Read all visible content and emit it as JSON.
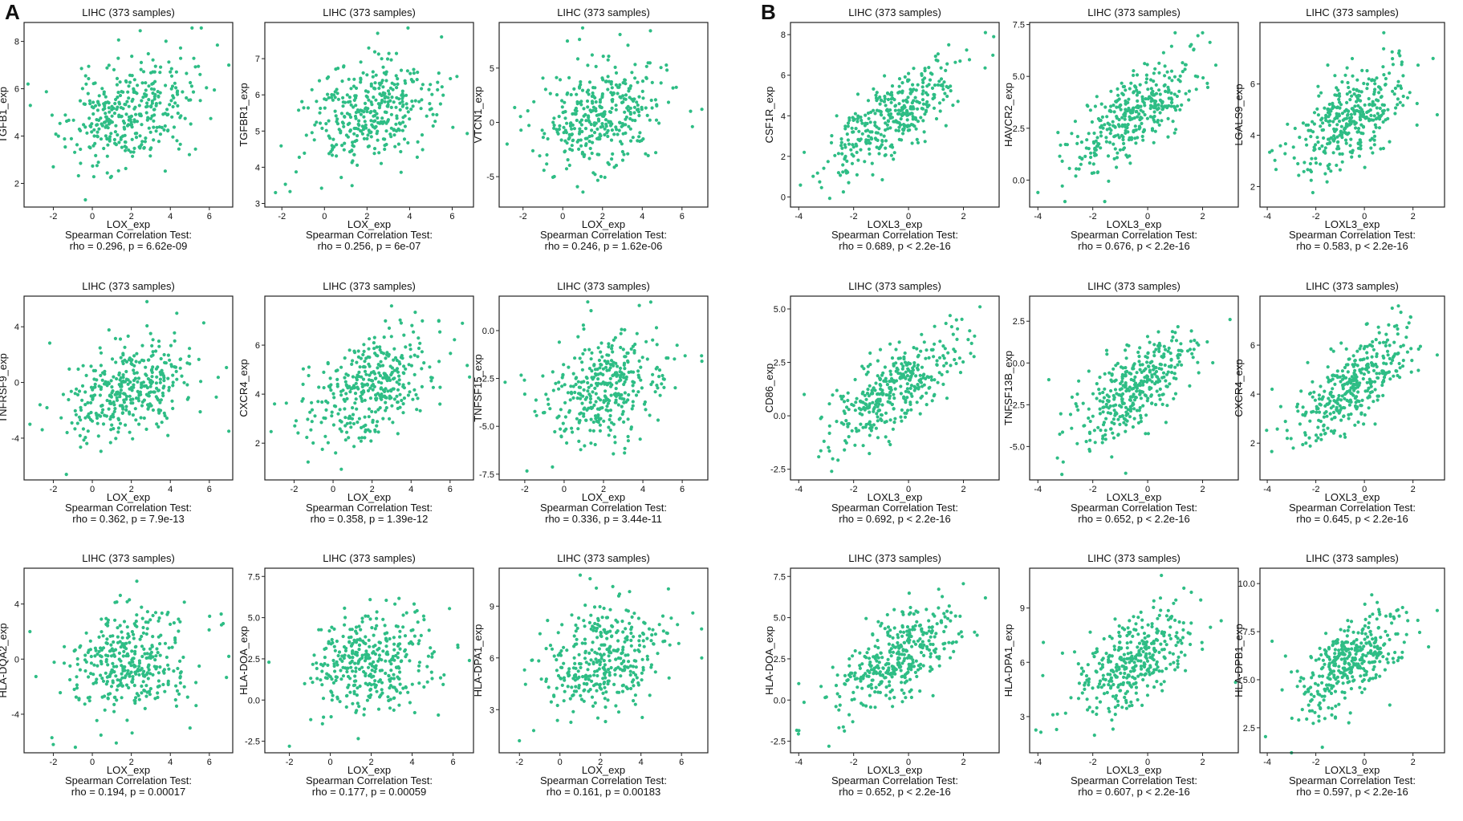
{
  "panels": {
    "A": {
      "label": "A"
    },
    "B": {
      "label": "B"
    }
  },
  "colors": {
    "point": "#2ebd85",
    "axis": "#222222"
  },
  "chart_data": [
    {
      "id": "A1",
      "panel": "A",
      "type": "scatter",
      "title": "LIHC (373 samples)",
      "xlabel": "LOX_exp",
      "ylabel": "TGFB1_exp",
      "xlim": [
        -3.5,
        7.2
      ],
      "ylim": [
        1.0,
        8.8
      ],
      "xticks": [
        -2,
        0,
        2,
        4,
        6
      ],
      "yticks": [
        2,
        4,
        6,
        8
      ],
      "test": "Spearman Correlation Test:",
      "stat": "rho = 0.296, p = 6.62e-09",
      "rho": 0.296,
      "n": 373,
      "seed": 11,
      "outliers": [
        [
          -3.3,
          6.2
        ],
        [
          7.0,
          7.0
        ],
        [
          -2.0,
          2.7
        ]
      ]
    },
    {
      "id": "A2",
      "panel": "A",
      "type": "scatter",
      "title": "LIHC (373 samples)",
      "xlabel": "LOX_exp",
      "ylabel": "TGFBR1_exp",
      "xlim": [
        -2.8,
        7.0
      ],
      "ylim": [
        2.9,
        8.0
      ],
      "xticks": [
        -2,
        0,
        2,
        4,
        6
      ],
      "yticks": [
        3,
        4,
        5,
        6,
        7
      ],
      "test": "Spearman Correlation Test:",
      "stat": "rho = 0.256, p = 6e-07",
      "rho": 0.256,
      "n": 373,
      "seed": 23,
      "outliers": [
        [
          2.5,
          7.7
        ],
        [
          5.5,
          7.6
        ],
        [
          -2.3,
          3.3
        ]
      ]
    },
    {
      "id": "A3",
      "panel": "A",
      "type": "scatter",
      "title": "LIHC (373 samples)",
      "xlabel": "LOX_exp",
      "ylabel": "VTCN1_exp",
      "xlim": [
        -3.2,
        7.3
      ],
      "ylim": [
        -7.8,
        9.2
      ],
      "xticks": [
        -2,
        0,
        2,
        4,
        6
      ],
      "yticks": [
        -5,
        0,
        5
      ],
      "test": "Spearman Correlation Test:",
      "stat": "rho = 0.246, p = 1.62e-06",
      "rho": 0.246,
      "n": 373,
      "seed": 37,
      "outliers": [
        [
          -2.8,
          -2.0
        ],
        [
          7.0,
          1.2
        ],
        [
          1.0,
          8.7
        ]
      ]
    },
    {
      "id": "A4",
      "panel": "A",
      "type": "scatter",
      "title": "LIHC (373 samples)",
      "xlabel": "LOX_exp",
      "ylabel": "TNFRSF9_exp",
      "xlim": [
        -3.5,
        7.2
      ],
      "ylim": [
        -7.0,
        6.2
      ],
      "xticks": [
        -2,
        0,
        2,
        4,
        6
      ],
      "yticks": [
        -4,
        0,
        4
      ],
      "test": "Spearman Correlation Test:",
      "stat": "rho = 0.362, p = 7.9e-13",
      "rho": 0.362,
      "n": 373,
      "seed": 41,
      "outliers": [
        [
          -3.2,
          -3.0
        ],
        [
          2.8,
          5.8
        ],
        [
          7.0,
          -3.5
        ]
      ]
    },
    {
      "id": "A5",
      "panel": "A",
      "type": "scatter",
      "title": "LIHC (373 samples)",
      "xlabel": "LOX_exp",
      "ylabel": "CXCR4_exp",
      "xlim": [
        -3.5,
        7.2
      ],
      "ylim": [
        0.5,
        8.0
      ],
      "xticks": [
        -2,
        0,
        2,
        4,
        6
      ],
      "yticks": [
        2,
        4,
        6
      ],
      "test": "Spearman Correlation Test:",
      "stat": "rho = 0.358, p = 1.39e-12",
      "rho": 0.358,
      "n": 373,
      "seed": 53,
      "outliers": [
        [
          -3.0,
          3.6
        ],
        [
          7.0,
          4.7
        ],
        [
          3.0,
          7.6
        ]
      ]
    },
    {
      "id": "A6",
      "panel": "A",
      "type": "scatter",
      "title": "LIHC (373 samples)",
      "xlabel": "LOX_exp",
      "ylabel": "TNFSF15_exp",
      "xlim": [
        -3.3,
        7.3
      ],
      "ylim": [
        -7.8,
        1.8
      ],
      "xticks": [
        -2,
        0,
        2,
        4,
        6
      ],
      "yticks": [
        -7.5,
        -5.0,
        -2.5,
        0.0
      ],
      "test": "Spearman Correlation Test:",
      "stat": "rho = 0.336, p = 3.44e-11",
      "rho": 0.336,
      "n": 373,
      "seed": 67,
      "outliers": [
        [
          -3.0,
          -2.7
        ],
        [
          7.0,
          -1.6
        ],
        [
          1.2,
          1.5
        ]
      ]
    },
    {
      "id": "A7",
      "panel": "A",
      "type": "scatter",
      "title": "LIHC (373 samples)",
      "xlabel": "LOX_exp",
      "ylabel": "HLA-DQA2_exp",
      "xlim": [
        -3.5,
        7.2
      ],
      "ylim": [
        -6.8,
        6.6
      ],
      "xticks": [
        -2,
        0,
        2,
        4,
        6
      ],
      "yticks": [
        -4,
        0,
        4
      ],
      "test": "Spearman Correlation Test:",
      "stat": "rho = 0.194, p = 0.00017",
      "rho": 0.194,
      "n": 373,
      "seed": 71,
      "outliers": [
        [
          -2.0,
          -6.2
        ],
        [
          -3.2,
          2.0
        ],
        [
          7.0,
          0.2
        ]
      ]
    },
    {
      "id": "A8",
      "panel": "A",
      "type": "scatter",
      "title": "LIHC (373 samples)",
      "xlabel": "LOX_exp",
      "ylabel": "HLA-DOA_exp",
      "xlim": [
        -3.2,
        7.0
      ],
      "ylim": [
        -3.2,
        8.0
      ],
      "xticks": [
        -2,
        0,
        2,
        4,
        6
      ],
      "yticks": [
        -2.5,
        0.0,
        2.5,
        5.0,
        7.5
      ],
      "test": "Spearman Correlation Test:",
      "stat": "rho = 0.177, p = 0.00059",
      "rho": 0.177,
      "n": 373,
      "seed": 83,
      "outliers": [
        [
          -2.0,
          -2.8
        ],
        [
          -3.0,
          2.3
        ],
        [
          6.8,
          2.4
        ]
      ]
    },
    {
      "id": "A9",
      "panel": "A",
      "type": "scatter",
      "title": "LIHC (373 samples)",
      "xlabel": "LOX_exp",
      "ylabel": "HLA-DPA1_exp",
      "xlim": [
        -3.0,
        7.3
      ],
      "ylim": [
        0.5,
        11.2
      ],
      "xticks": [
        -2,
        0,
        2,
        4,
        6
      ],
      "yticks": [
        3,
        6,
        9
      ],
      "test": "Spearman Correlation Test:",
      "stat": "rho = 0.161, p = 0.00183",
      "rho": 0.161,
      "n": 373,
      "seed": 97,
      "outliers": [
        [
          -2.0,
          1.2
        ],
        [
          1.0,
          10.8
        ],
        [
          7.0,
          6.0
        ]
      ]
    },
    {
      "id": "B1",
      "panel": "B",
      "type": "scatter",
      "title": "LIHC (373 samples)",
      "xlabel": "LOXL3_exp",
      "ylabel": "CSF1R_exp",
      "xlim": [
        -4.3,
        3.3
      ],
      "ylim": [
        -0.5,
        8.6
      ],
      "xticks": [
        -4,
        -2,
        0,
        2
      ],
      "yticks": [
        0,
        2,
        4,
        6,
        8
      ],
      "test": "Spearman Correlation Test:",
      "stat": "rho = 0.689, p < 2.2e-16",
      "rho": 0.689,
      "n": 373,
      "seed": 101,
      "outliers": [
        [
          -3.8,
          2.2
        ],
        [
          2.8,
          8.1
        ],
        [
          3.1,
          7.9
        ]
      ]
    },
    {
      "id": "B2",
      "panel": "B",
      "type": "scatter",
      "title": "LIHC (373 samples)",
      "xlabel": "LOXL3_exp",
      "ylabel": "HAVCR2_exp",
      "xlim": [
        -4.3,
        3.3
      ],
      "ylim": [
        -1.3,
        7.6
      ],
      "xticks": [
        -4,
        -2,
        0,
        2
      ],
      "yticks": [
        0.0,
        2.5,
        5.0,
        7.5
      ],
      "test": "Spearman Correlation Test:",
      "stat": "rho = 0.676, p < 2.2e-16",
      "rho": 0.676,
      "n": 373,
      "seed": 113,
      "outliers": [
        [
          -4.0,
          -0.6
        ],
        [
          2.0,
          7.1
        ],
        [
          1.0,
          7.1
        ]
      ]
    },
    {
      "id": "B3",
      "panel": "B",
      "type": "scatter",
      "title": "LIHC (373 samples)",
      "xlabel": "LOXL3_exp",
      "ylabel": "LGALS9_exp",
      "xlim": [
        -4.3,
        3.3
      ],
      "ylim": [
        1.2,
        8.4
      ],
      "xticks": [
        -4,
        -2,
        0,
        2
      ],
      "yticks": [
        2,
        4,
        6
      ],
      "test": "Spearman Correlation Test:",
      "stat": "rho = 0.583, p < 2.2e-16",
      "rho": 0.583,
      "n": 373,
      "seed": 127,
      "outliers": [
        [
          -3.8,
          3.4
        ],
        [
          0.8,
          8.0
        ],
        [
          3.0,
          4.8
        ]
      ]
    },
    {
      "id": "B4",
      "panel": "B",
      "type": "scatter",
      "title": "LIHC (373 samples)",
      "xlabel": "LOXL3_exp",
      "ylabel": "CD86_exp",
      "xlim": [
        -4.3,
        3.3
      ],
      "ylim": [
        -3.0,
        5.6
      ],
      "xticks": [
        -4,
        -2,
        0,
        2
      ],
      "yticks": [
        -2.5,
        0.0,
        2.5,
        5.0
      ],
      "test": "Spearman Correlation Test:",
      "stat": "rho = 0.692, p < 2.2e-16",
      "rho": 0.692,
      "n": 373,
      "seed": 131,
      "outliers": [
        [
          -3.8,
          1.0
        ],
        [
          2.6,
          5.1
        ],
        [
          -2.8,
          -2.6
        ]
      ]
    },
    {
      "id": "B5",
      "panel": "B",
      "type": "scatter",
      "title": "LIHC (373 samples)",
      "xlabel": "LOXL3_exp",
      "ylabel": "TNFSF13B_exp",
      "xlim": [
        -4.3,
        3.3
      ],
      "ylim": [
        -7.0,
        4.0
      ],
      "xticks": [
        -4,
        -2,
        0,
        2
      ],
      "yticks": [
        -5.0,
        -2.5,
        0.0,
        2.5
      ],
      "test": "Spearman Correlation Test:",
      "stat": "rho = 0.652, p < 2.2e-16",
      "rho": 0.652,
      "n": 373,
      "seed": 139,
      "outliers": [
        [
          -3.6,
          -1.0
        ],
        [
          3.0,
          2.6
        ],
        [
          -0.8,
          -6.6
        ]
      ]
    },
    {
      "id": "B6",
      "panel": "B",
      "type": "scatter",
      "title": "LIHC (373 samples)",
      "xlabel": "LOXL3_exp",
      "ylabel": "CXCR4_exp",
      "xlim": [
        -4.3,
        3.3
      ],
      "ylim": [
        0.5,
        8.0
      ],
      "xticks": [
        -4,
        -2,
        0,
        2
      ],
      "yticks": [
        2,
        4,
        6
      ],
      "test": "Spearman Correlation Test:",
      "stat": "rho = 0.645, p < 2.2e-16",
      "rho": 0.645,
      "n": 373,
      "seed": 149,
      "outliers": [
        [
          -3.8,
          4.2
        ],
        [
          1.4,
          7.6
        ],
        [
          3.0,
          5.6
        ]
      ]
    },
    {
      "id": "B7",
      "panel": "B",
      "type": "scatter",
      "title": "LIHC (373 samples)",
      "xlabel": "LOXL3_exp",
      "ylabel": "HLA-DOA_exp",
      "xlim": [
        -4.3,
        3.3
      ],
      "ylim": [
        -3.2,
        8.0
      ],
      "xticks": [
        -4,
        -2,
        0,
        2
      ],
      "yticks": [
        -2.5,
        0.0,
        2.5,
        5.0,
        7.5
      ],
      "test": "Spearman Correlation Test:",
      "stat": "rho = 0.652, p < 2.2e-16",
      "rho": 0.652,
      "n": 373,
      "seed": 157,
      "outliers": [
        [
          -4.0,
          1.0
        ],
        [
          -2.9,
          -2.8
        ],
        [
          2.8,
          6.2
        ]
      ]
    },
    {
      "id": "B8",
      "panel": "B",
      "type": "scatter",
      "title": "LIHC (373 samples)",
      "xlabel": "LOXL3_exp",
      "ylabel": "HLA-DPA1_exp",
      "xlim": [
        -4.3,
        3.3
      ],
      "ylim": [
        1.0,
        11.2
      ],
      "xticks": [
        -4,
        -2,
        0,
        2
      ],
      "yticks": [
        3,
        6,
        9
      ],
      "test": "Spearman Correlation Test:",
      "stat": "rho = 0.607, p < 2.2e-16",
      "rho": 0.607,
      "n": 373,
      "seed": 163,
      "outliers": [
        [
          -3.8,
          7.1
        ],
        [
          0.5,
          10.8
        ],
        [
          3.2,
          4.9
        ]
      ]
    },
    {
      "id": "B9",
      "panel": "B",
      "type": "scatter",
      "title": "LIHC (373 samples)",
      "xlabel": "LOXL3_exp",
      "ylabel": "HLA-DPB1_exp",
      "xlim": [
        -4.3,
        3.3
      ],
      "ylim": [
        1.2,
        10.8
      ],
      "xticks": [
        -4,
        -2,
        0,
        2
      ],
      "yticks": [
        2.5,
        5.0,
        7.5,
        10.0
      ],
      "test": "Spearman Correlation Test:",
      "stat": "rho = 0.597, p < 2.2e-16",
      "rho": 0.597,
      "n": 373,
      "seed": 173,
      "outliers": [
        [
          -3.8,
          7.0
        ],
        [
          -3.0,
          1.2
        ],
        [
          3.0,
          8.6
        ]
      ]
    }
  ]
}
